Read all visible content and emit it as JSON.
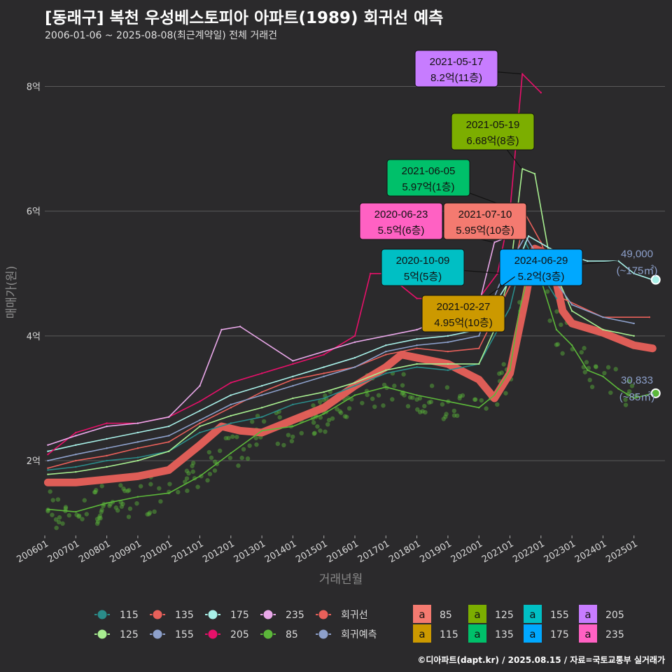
{
  "header": {
    "title": "[동래구] 복천 우성베스토피아 아파트(1989) 회귀선 예측",
    "subtitle": "2006-01-06 ~ 2025-08-08(최근계약일) 전체 거래건"
  },
  "footer": {
    "credit": "©디아파트(dapt.kr) / 2025.08.15 / 자료=국토교통부 실거래가"
  },
  "colors": {
    "background": "#2b2a2c",
    "grid": "#5a5a5a",
    "regression": "#e8605a",
    "s85": "#5cb83a",
    "s115": "#2a8c8a",
    "s125": "#a8ee90",
    "s135": "#e8605a",
    "s155": "#8da0cb",
    "s175": "#a8f0e8",
    "s205": "#e8106a",
    "s235": "#eaa8ea",
    "lab85": "#f47a70",
    "lab115": "#cc9900",
    "lab125": "#7cae00",
    "lab135": "#00c06a",
    "lab155": "#00bfc4",
    "lab175": "#00a8ff",
    "lab205": "#c77cff",
    "lab235": "#ff61c3"
  },
  "chart_data": {
    "type": "line",
    "xlabel": "거래년월",
    "ylabel": "매매가(원)",
    "x_ticks": [
      "200601",
      "200701",
      "200801",
      "200901",
      "201001",
      "201101",
      "201201",
      "201301",
      "201401",
      "201501",
      "201601",
      "201701",
      "201801",
      "201901",
      "202001",
      "202101",
      "202201",
      "202301",
      "202401",
      "202501"
    ],
    "y_ticks": [
      "2억",
      "4억",
      "6억",
      "8억"
    ],
    "y_tick_values": [
      2,
      4,
      6,
      8
    ],
    "xlim": [
      2006.0,
      2026.0
    ],
    "ylim": [
      0.8,
      8.6
    ],
    "grid": true,
    "series": [
      {
        "name": "85",
        "points": [
          [
            2006.1,
            1.22
          ],
          [
            2007.0,
            1.18
          ],
          [
            2008.0,
            1.32
          ],
          [
            2009.0,
            1.42
          ],
          [
            2010.0,
            1.48
          ],
          [
            2011.0,
            1.75
          ],
          [
            2012.0,
            2.12
          ],
          [
            2013.0,
            2.48
          ],
          [
            2014.0,
            2.55
          ],
          [
            2015.0,
            2.75
          ],
          [
            2016.0,
            3.05
          ],
          [
            2017.0,
            3.18
          ],
          [
            2018.0,
            3.05
          ],
          [
            2019.0,
            2.95
          ],
          [
            2020.0,
            2.85
          ],
          [
            2020.5,
            3.05
          ],
          [
            2021.0,
            3.45
          ],
          [
            2021.3,
            4.4
          ],
          [
            2021.6,
            5.0
          ],
          [
            2022.0,
            4.9
          ],
          [
            2022.5,
            4.1
          ],
          [
            2023.0,
            3.85
          ],
          [
            2023.5,
            3.45
          ],
          [
            2024.0,
            3.35
          ],
          [
            2024.5,
            3.15
          ],
          [
            2025.0,
            3.0
          ],
          [
            2025.6,
            3.08
          ]
        ]
      },
      {
        "name": "115",
        "points": [
          [
            2006.1,
            1.85
          ],
          [
            2007.0,
            1.9
          ],
          [
            2008.0,
            2.0
          ],
          [
            2009.0,
            2.05
          ],
          [
            2010.0,
            2.15
          ],
          [
            2011.0,
            2.45
          ],
          [
            2012.0,
            2.6
          ],
          [
            2013.0,
            2.7
          ],
          [
            2014.0,
            2.9
          ],
          [
            2015.0,
            3.0
          ],
          [
            2016.0,
            3.2
          ],
          [
            2017.0,
            3.4
          ],
          [
            2018.0,
            3.5
          ],
          [
            2019.0,
            3.45
          ],
          [
            2020.0,
            3.55
          ],
          [
            2021.0,
            4.45
          ],
          [
            2021.5,
            5.5
          ],
          [
            2022.0,
            5.0
          ],
          [
            2022.5,
            4.6
          ]
        ]
      },
      {
        "name": "125",
        "points": [
          [
            2006.1,
            1.78
          ],
          [
            2007.0,
            1.82
          ],
          [
            2008.0,
            1.9
          ],
          [
            2009.0,
            2.0
          ],
          [
            2010.0,
            2.15
          ],
          [
            2011.0,
            2.55
          ],
          [
            2012.0,
            2.72
          ],
          [
            2013.0,
            2.85
          ],
          [
            2014.0,
            3.0
          ],
          [
            2015.0,
            3.1
          ],
          [
            2016.0,
            3.25
          ],
          [
            2017.0,
            3.45
          ],
          [
            2018.0,
            3.55
          ],
          [
            2019.0,
            3.55
          ],
          [
            2020.0,
            3.55
          ],
          [
            2020.5,
            4.1
          ],
          [
            2021.0,
            5.0
          ],
          [
            2021.4,
            6.68
          ],
          [
            2021.8,
            6.6
          ],
          [
            2022.3,
            5.2
          ],
          [
            2023.0,
            4.4
          ],
          [
            2024.0,
            4.1
          ],
          [
            2025.0,
            4.0
          ]
        ]
      },
      {
        "name": "135",
        "points": [
          [
            2006.1,
            1.88
          ],
          [
            2007.0,
            2.0
          ],
          [
            2008.0,
            2.08
          ],
          [
            2009.0,
            2.2
          ],
          [
            2010.0,
            2.3
          ],
          [
            2011.0,
            2.6
          ],
          [
            2012.0,
            2.85
          ],
          [
            2013.0,
            3.1
          ],
          [
            2014.0,
            3.3
          ],
          [
            2015.0,
            3.4
          ],
          [
            2016.0,
            3.5
          ],
          [
            2017.0,
            3.7
          ],
          [
            2018.0,
            3.8
          ],
          [
            2019.0,
            3.75
          ],
          [
            2020.0,
            3.8
          ],
          [
            2021.0,
            4.8
          ],
          [
            2021.5,
            5.95
          ],
          [
            2022.0,
            5.5
          ],
          [
            2022.7,
            4.6
          ],
          [
            2024.0,
            4.3
          ],
          [
            2025.5,
            4.3
          ]
        ]
      },
      {
        "name": "155",
        "points": [
          [
            2006.1,
            2.0
          ],
          [
            2007.0,
            2.1
          ],
          [
            2008.0,
            2.2
          ],
          [
            2009.0,
            2.3
          ],
          [
            2010.0,
            2.4
          ],
          [
            2011.0,
            2.65
          ],
          [
            2012.0,
            2.9
          ],
          [
            2013.0,
            3.05
          ],
          [
            2014.0,
            3.2
          ],
          [
            2015.0,
            3.35
          ],
          [
            2016.0,
            3.5
          ],
          [
            2017.0,
            3.75
          ],
          [
            2018.0,
            3.85
          ],
          [
            2019.0,
            3.9
          ],
          [
            2020.0,
            4.0
          ],
          [
            2020.8,
            5.0
          ],
          [
            2021.5,
            5.6
          ],
          [
            2022.0,
            5.2
          ],
          [
            2023.0,
            4.5
          ],
          [
            2024.0,
            4.3
          ],
          [
            2025.0,
            4.2
          ]
        ]
      },
      {
        "name": "175",
        "points": [
          [
            2006.1,
            2.15
          ],
          [
            2007.0,
            2.25
          ],
          [
            2008.0,
            2.35
          ],
          [
            2009.0,
            2.45
          ],
          [
            2010.0,
            2.55
          ],
          [
            2011.0,
            2.8
          ],
          [
            2012.0,
            3.05
          ],
          [
            2013.0,
            3.2
          ],
          [
            2014.0,
            3.35
          ],
          [
            2015.0,
            3.5
          ],
          [
            2016.0,
            3.65
          ],
          [
            2017.0,
            3.85
          ],
          [
            2018.0,
            3.95
          ],
          [
            2019.0,
            4.0
          ],
          [
            2020.0,
            4.1
          ],
          [
            2021.0,
            4.9
          ],
          [
            2021.6,
            5.6
          ],
          [
            2022.3,
            5.4
          ],
          [
            2023.5,
            5.2
          ],
          [
            2024.5,
            5.2
          ],
          [
            2025.0,
            5.0
          ],
          [
            2025.6,
            4.9
          ]
        ]
      },
      {
        "name": "205",
        "points": [
          [
            2006.1,
            2.1
          ],
          [
            2007.0,
            2.45
          ],
          [
            2008.0,
            2.6
          ],
          [
            2009.0,
            2.6
          ],
          [
            2010.0,
            2.7
          ],
          [
            2011.0,
            2.95
          ],
          [
            2012.0,
            3.25
          ],
          [
            2013.0,
            3.4
          ],
          [
            2014.0,
            3.55
          ],
          [
            2015.0,
            3.7
          ],
          [
            2016.0,
            4.0
          ],
          [
            2016.5,
            5.0
          ],
          [
            2017.0,
            5.0
          ],
          [
            2018.0,
            4.6
          ],
          [
            2019.0,
            4.6
          ],
          [
            2020.0,
            4.6
          ],
          [
            2020.6,
            5.0
          ],
          [
            2021.0,
            6.0
          ],
          [
            2021.4,
            8.2
          ],
          [
            2022.0,
            7.9
          ]
        ]
      },
      {
        "name": "235",
        "points": [
          [
            2006.1,
            2.25
          ],
          [
            2007.0,
            2.4
          ],
          [
            2008.0,
            2.55
          ],
          [
            2009.0,
            2.6
          ],
          [
            2010.0,
            2.7
          ],
          [
            2011.0,
            3.2
          ],
          [
            2011.7,
            4.1
          ],
          [
            2012.3,
            4.15
          ],
          [
            2014.0,
            3.6
          ],
          [
            2016.0,
            3.9
          ],
          [
            2018.0,
            4.1
          ],
          [
            2020.0,
            4.5
          ],
          [
            2020.5,
            5.5
          ],
          [
            2021.0,
            5.6
          ]
        ]
      },
      {
        "name": "회귀선",
        "points": [
          [
            2006.1,
            1.65
          ],
          [
            2007.0,
            1.65
          ],
          [
            2008.0,
            1.7
          ],
          [
            2009.0,
            1.75
          ],
          [
            2010.0,
            1.85
          ],
          [
            2011.0,
            2.25
          ],
          [
            2011.7,
            2.55
          ],
          [
            2012.3,
            2.48
          ],
          [
            2013.0,
            2.45
          ],
          [
            2014.0,
            2.65
          ],
          [
            2015.0,
            2.85
          ],
          [
            2016.0,
            3.2
          ],
          [
            2017.0,
            3.5
          ],
          [
            2017.5,
            3.7
          ],
          [
            2018.0,
            3.65
          ],
          [
            2019.0,
            3.55
          ],
          [
            2020.0,
            3.3
          ],
          [
            2020.5,
            3.0
          ],
          [
            2021.0,
            3.4
          ],
          [
            2021.5,
            4.6
          ],
          [
            2021.8,
            5.4
          ],
          [
            2022.3,
            5.3
          ],
          [
            2022.7,
            4.4
          ],
          [
            2023.0,
            4.2
          ],
          [
            2024.0,
            4.05
          ],
          [
            2025.0,
            3.85
          ],
          [
            2025.6,
            3.8
          ]
        ]
      },
      {
        "name": "회귀예측",
        "points": [
          [
            2025.6,
            3.8
          ],
          [
            2025.7,
            3.8
          ]
        ]
      }
    ],
    "annotations": [
      {
        "date": "2021-05-17",
        "value": "8.2억(11층)",
        "area": "205",
        "price": 8.2
      },
      {
        "date": "2021-05-19",
        "value": "6.68억(8층)",
        "area": "125",
        "price": 6.68
      },
      {
        "date": "2021-06-05",
        "value": "5.97억(1층)",
        "area": "135",
        "price": 5.97
      },
      {
        "date": "2020-06-23",
        "value": "5.5억(6층)",
        "area": "235",
        "price": 5.5
      },
      {
        "date": "2021-07-10",
        "value": "5.95억(10층)",
        "area": "85",
        "price": 5.95
      },
      {
        "date": "2020-10-09",
        "value": "5억(5층)",
        "area": "155",
        "price": 5.0
      },
      {
        "date": "2024-06-29",
        "value": "5.2억(3층)",
        "area": "175",
        "price": 5.2
      },
      {
        "date": "2021-02-27",
        "value": "4.95억(10층)",
        "area": "115",
        "price": 4.95
      }
    ],
    "end_labels": [
      {
        "value": "49,000",
        "area": "(~175㎡)",
        "price": 4.9
      },
      {
        "value": "30,833",
        "area": "(~85㎡)",
        "price": 3.08
      }
    ],
    "legend_lines": [
      {
        "name": "115",
        "color": "s115"
      },
      {
        "name": "135",
        "color": "s135"
      },
      {
        "name": "175",
        "color": "s175"
      },
      {
        "name": "235",
        "color": "s235"
      },
      {
        "name": "회귀선",
        "color": "regression"
      },
      {
        "name": "125",
        "color": "s125"
      },
      {
        "name": "155",
        "color": "s155"
      },
      {
        "name": "205",
        "color": "s205"
      },
      {
        "name": "85",
        "color": "s85"
      },
      {
        "name": "회귀예측",
        "color": "s155"
      }
    ],
    "legend_labels": [
      {
        "name": "85",
        "color": "lab85"
      },
      {
        "name": "125",
        "color": "lab125"
      },
      {
        "name": "155",
        "color": "lab155"
      },
      {
        "name": "205",
        "color": "lab205"
      },
      {
        "name": "115",
        "color": "lab115"
      },
      {
        "name": "135",
        "color": "lab135"
      },
      {
        "name": "175",
        "color": "lab175"
      },
      {
        "name": "235",
        "color": "lab235"
      }
    ],
    "legend_key_glyph": "a",
    "legend_placement": "bottom"
  }
}
